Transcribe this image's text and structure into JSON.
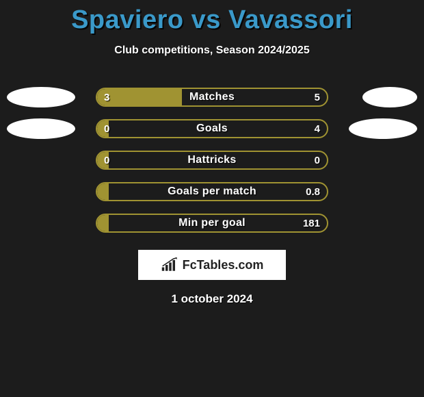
{
  "title": "Spaviero vs Vavassori",
  "title_color": "#3a99c9",
  "subtitle": "Club competitions, Season 2024/2025",
  "background_color": "#1c1c1c",
  "bar_border_color": "#a09332",
  "bar_fill_color": "#a09332",
  "text_color": "#ffffff",
  "ellipse_color": "#ffffff",
  "rows": [
    {
      "label": "Matches",
      "left": "3",
      "right": "5",
      "fill_pct": 37,
      "left_ellipse_w": 100,
      "right_ellipse_w": 80
    },
    {
      "label": "Goals",
      "left": "0",
      "right": "4",
      "fill_pct": 5,
      "left_ellipse_w": 100,
      "right_ellipse_w": 100
    },
    {
      "label": "Hattricks",
      "left": "0",
      "right": "0",
      "fill_pct": 5,
      "left_ellipse_w": 0,
      "right_ellipse_w": 0
    },
    {
      "label": "Goals per match",
      "left": "",
      "right": "0.8",
      "fill_pct": 5,
      "left_ellipse_w": 0,
      "right_ellipse_w": 0
    },
    {
      "label": "Min per goal",
      "left": "",
      "right": "181",
      "fill_pct": 5,
      "left_ellipse_w": 0,
      "right_ellipse_w": 0
    }
  ],
  "logo_text": "FcTables.com",
  "date": "1 october 2024"
}
